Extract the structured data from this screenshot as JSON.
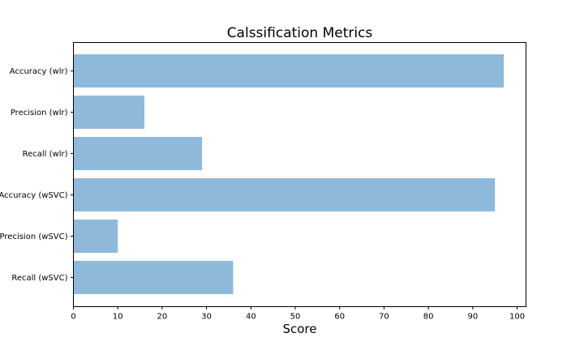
{
  "chart_data": {
    "type": "bar",
    "orientation": "horizontal",
    "title": "Calssification Metrics",
    "xlabel": "Score",
    "ylabel": "",
    "categories": [
      "Accuracy (wlr)",
      "Precision (wlr)",
      "Recall (wlr)",
      "Accuracy (wSVC)",
      "Precision (wSVC)",
      "Recall (wSVC)"
    ],
    "values": [
      97,
      16,
      29,
      95,
      10,
      36
    ],
    "xlim": [
      0,
      102
    ],
    "xticks": [
      0,
      10,
      20,
      30,
      40,
      50,
      60,
      70,
      80,
      90,
      100
    ],
    "bar_color": "#8fb9da",
    "grid": false,
    "legend": "none"
  }
}
